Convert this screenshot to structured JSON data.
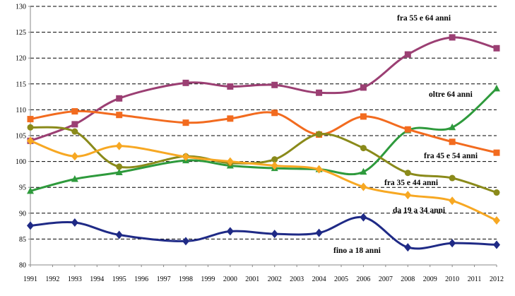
{
  "chart_data": {
    "type": "line",
    "title": "",
    "xlabel": "",
    "ylabel": "",
    "ylim": [
      80,
      130
    ],
    "yticks": [
      80,
      85,
      90,
      95,
      100,
      105,
      110,
      115,
      120,
      125,
      130
    ],
    "xticks": [
      "1991",
      "1992",
      "1993",
      "1994",
      "1995",
      "1996",
      "1997",
      "1998",
      "1999",
      "2000",
      "2001",
      "2002",
      "2003",
      "2004",
      "2005",
      "2006",
      "2007",
      "2008",
      "2009",
      "2010",
      "2011",
      "2012"
    ],
    "grid": true,
    "legend": "inline labels",
    "series": [
      {
        "name": "fra 55 e 64 anni",
        "color": "#9b3f73",
        "marker": "square",
        "points": [
          [
            1991,
            104.0
          ],
          [
            1993,
            107.2
          ],
          [
            1995,
            112.2
          ],
          [
            1998,
            115.2
          ],
          [
            2000,
            114.5
          ],
          [
            2002,
            114.8
          ],
          [
            2004,
            113.3
          ],
          [
            2006,
            114.3
          ],
          [
            2008,
            120.7
          ],
          [
            2010,
            124.0
          ],
          [
            2012,
            121.9
          ]
        ]
      },
      {
        "name": "oltre 64 anni",
        "color": "#2e9a3c",
        "marker": "triangle",
        "points": [
          [
            1991,
            94.3
          ],
          [
            1993,
            96.6
          ],
          [
            1995,
            97.9
          ],
          [
            1998,
            100.2
          ],
          [
            2000,
            99.2
          ],
          [
            2002,
            98.7
          ],
          [
            2004,
            98.5
          ],
          [
            2006,
            98.0
          ],
          [
            2008,
            106.0
          ],
          [
            2010,
            106.6
          ],
          [
            2012,
            114.1
          ]
        ]
      },
      {
        "name": "fra 45 e 54 anni",
        "color": "#f26b1f",
        "marker": "square",
        "points": [
          [
            1991,
            108.2
          ],
          [
            1993,
            109.7
          ],
          [
            1995,
            109.0
          ],
          [
            1998,
            107.5
          ],
          [
            2000,
            108.3
          ],
          [
            2002,
            109.4
          ],
          [
            2004,
            105.2
          ],
          [
            2006,
            108.7
          ],
          [
            2008,
            106.2
          ],
          [
            2010,
            103.8
          ],
          [
            2012,
            101.7
          ]
        ]
      },
      {
        "name": "fra 35 e 44 anni",
        "color": "#8a8a1a",
        "marker": "circle",
        "points": [
          [
            1991,
            106.6
          ],
          [
            1993,
            105.8
          ],
          [
            1995,
            99.0
          ],
          [
            1998,
            101.0
          ],
          [
            2000,
            99.7
          ],
          [
            2002,
            100.4
          ],
          [
            2004,
            105.3
          ],
          [
            2006,
            102.6
          ],
          [
            2008,
            97.8
          ],
          [
            2010,
            96.8
          ],
          [
            2012,
            94.0
          ]
        ]
      },
      {
        "name": "da 19 a 34 anni",
        "color": "#f7a823",
        "marker": "diamond",
        "points": [
          [
            1991,
            104.0
          ],
          [
            1993,
            101.0
          ],
          [
            1995,
            103.0
          ],
          [
            1998,
            100.9
          ],
          [
            2000,
            100.0
          ],
          [
            2002,
            99.2
          ],
          [
            2004,
            98.5
          ],
          [
            2006,
            95.1
          ],
          [
            2008,
            93.5
          ],
          [
            2010,
            92.4
          ],
          [
            2012,
            88.6
          ]
        ]
      },
      {
        "name": "fino a 18 anni",
        "color": "#1f2a86",
        "marker": "diamond",
        "points": [
          [
            1991,
            87.6
          ],
          [
            1993,
            88.2
          ],
          [
            1995,
            85.8
          ],
          [
            1998,
            84.6
          ],
          [
            2000,
            86.5
          ],
          [
            2002,
            86.0
          ],
          [
            2004,
            86.2
          ],
          [
            2006,
            89.2
          ],
          [
            2008,
            83.4
          ],
          [
            2010,
            84.2
          ],
          [
            2012,
            83.9
          ]
        ]
      }
    ]
  }
}
